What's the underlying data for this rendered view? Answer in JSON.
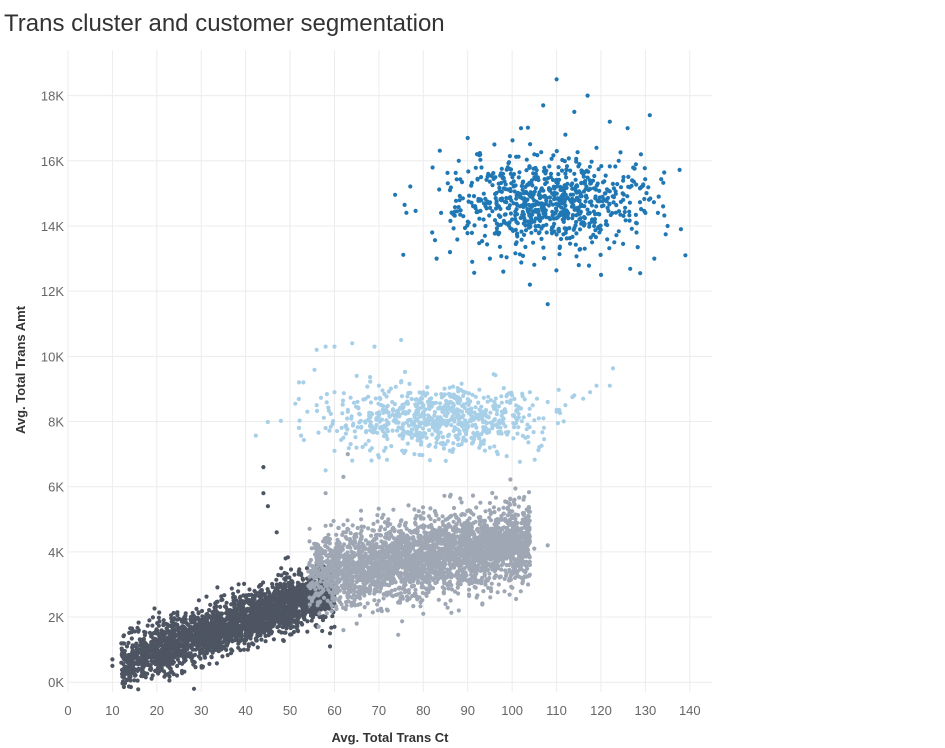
{
  "chart_data": {
    "type": "scatter",
    "title": "Trans cluster and customer segmentation",
    "xlabel": "Avg. Total Trans Ct",
    "ylabel": "Avg. Total Trans Amt",
    "xlim": [
      0,
      145
    ],
    "ylim": [
      -300,
      19400
    ],
    "x_ticks": [
      0,
      10,
      20,
      30,
      40,
      50,
      60,
      70,
      80,
      90,
      100,
      110,
      120,
      130,
      140
    ],
    "y_ticks": [
      {
        "value": 0,
        "label": "0K"
      },
      {
        "value": 2000,
        "label": "2K"
      },
      {
        "value": 4000,
        "label": "4K"
      },
      {
        "value": 6000,
        "label": "6K"
      },
      {
        "value": 8000,
        "label": "8K"
      },
      {
        "value": 10000,
        "label": "10K"
      },
      {
        "value": 12000,
        "label": "12K"
      },
      {
        "value": 14000,
        "label": "14K"
      },
      {
        "value": 16000,
        "label": "16K"
      },
      {
        "value": 18000,
        "label": "18K"
      }
    ],
    "grid": true,
    "legend": "none",
    "series": [
      {
        "color": "#4e5562",
        "points": [
          [
            10,
            500
          ],
          [
            10,
            700
          ],
          [
            12,
            600
          ],
          [
            14,
            650
          ],
          [
            15,
            900
          ],
          [
            16,
            700
          ],
          [
            18,
            1000
          ],
          [
            20,
            1100
          ],
          [
            20,
            800
          ],
          [
            22,
            1300
          ],
          [
            24,
            1200
          ],
          [
            25,
            1500
          ],
          [
            26,
            1100
          ],
          [
            28,
            1400
          ],
          [
            30,
            1600
          ],
          [
            30,
            1200
          ],
          [
            32,
            1800
          ],
          [
            33,
            1500
          ],
          [
            35,
            1900
          ],
          [
            36,
            1600
          ],
          [
            38,
            2200
          ],
          [
            38,
            1800
          ],
          [
            40,
            2000
          ],
          [
            40,
            1500
          ],
          [
            42,
            2400
          ],
          [
            43,
            2100
          ],
          [
            44,
            2700
          ],
          [
            45,
            1900
          ],
          [
            46,
            2500
          ],
          [
            47,
            3000
          ],
          [
            48,
            2200
          ],
          [
            50,
            2600
          ],
          [
            50,
            1800
          ],
          [
            51,
            3300
          ],
          [
            52,
            2400
          ],
          [
            53,
            2000
          ],
          [
            54,
            2800
          ],
          [
            55,
            2200
          ],
          [
            56,
            1700
          ],
          [
            57,
            2500
          ],
          [
            58,
            2000
          ],
          [
            59,
            1500
          ],
          [
            60,
            1700
          ],
          [
            59,
            1100
          ],
          [
            44,
            6600
          ],
          [
            44,
            5800
          ],
          [
            45,
            5400
          ],
          [
            47,
            4600
          ],
          [
            49,
            3800
          ],
          [
            48,
            3500
          ],
          [
            42,
            2800
          ],
          [
            36,
            1200
          ],
          [
            30,
            900
          ],
          [
            27,
            800
          ],
          [
            33,
            2300
          ]
        ],
        "cloud": {
          "count": 2600,
          "x_range": [
            12,
            60
          ],
          "y_at_x_start": 600,
          "y_slope": 48,
          "y_spread": 900
        }
      },
      {
        "color": "#9ea7b3",
        "points": [
          [
            55,
            3000
          ],
          [
            56,
            4200
          ],
          [
            57,
            3600
          ],
          [
            58,
            4800
          ],
          [
            60,
            3200
          ],
          [
            62,
            4600
          ],
          [
            63,
            2600
          ],
          [
            64,
            3900
          ],
          [
            66,
            5000
          ],
          [
            67,
            3300
          ],
          [
            69,
            4400
          ],
          [
            70,
            2500
          ],
          [
            71,
            3800
          ],
          [
            72,
            4900
          ],
          [
            74,
            3500
          ],
          [
            75,
            4200
          ],
          [
            76,
            2800
          ],
          [
            78,
            4600
          ],
          [
            79,
            3700
          ],
          [
            80,
            5200
          ],
          [
            82,
            4100
          ],
          [
            83,
            3300
          ],
          [
            85,
            4700
          ],
          [
            86,
            4000
          ],
          [
            88,
            5000
          ],
          [
            90,
            4400
          ],
          [
            92,
            3800
          ],
          [
            94,
            4800
          ],
          [
            96,
            4500
          ],
          [
            98,
            4200
          ],
          [
            100,
            4600
          ],
          [
            102,
            4300
          ],
          [
            105,
            4100
          ],
          [
            108,
            4200
          ],
          [
            103,
            3400
          ],
          [
            97,
            3000
          ],
          [
            92,
            2600
          ],
          [
            88,
            2200
          ],
          [
            85,
            2400
          ],
          [
            80,
            2100
          ],
          [
            72,
            2200
          ],
          [
            65,
            1800
          ],
          [
            62,
            1600
          ],
          [
            58,
            5800
          ],
          [
            62,
            6300
          ],
          [
            63,
            7000
          ],
          [
            78,
            5300
          ],
          [
            86,
            5700
          ],
          [
            104,
            3600
          ],
          [
            95,
            5500
          ]
        ],
        "cloud": {
          "count": 3000,
          "x_range": [
            54,
            104
          ],
          "y_at_x_start": 3300,
          "y_slope": 20,
          "y_spread": 1300
        }
      },
      {
        "color": "#a7cfe8",
        "points": [
          [
            52,
            9200
          ],
          [
            53,
            9200
          ],
          [
            56,
            10200
          ],
          [
            58,
            10300
          ],
          [
            60,
            10300
          ],
          [
            64,
            10400
          ],
          [
            69,
            10300
          ],
          [
            75,
            10500
          ],
          [
            56,
            8500
          ],
          [
            58,
            7800
          ],
          [
            60,
            8900
          ],
          [
            62,
            7500
          ],
          [
            63,
            8300
          ],
          [
            65,
            9400
          ],
          [
            67,
            7300
          ],
          [
            68,
            8000
          ],
          [
            70,
            9100
          ],
          [
            72,
            7700
          ],
          [
            73,
            8600
          ],
          [
            75,
            9200
          ],
          [
            76,
            7100
          ],
          [
            78,
            8200
          ],
          [
            80,
            8900
          ],
          [
            82,
            7600
          ],
          [
            84,
            8400
          ],
          [
            85,
            7300
          ],
          [
            87,
            8000
          ],
          [
            88,
            7600
          ],
          [
            89,
            8500
          ],
          [
            90,
            7900
          ],
          [
            92,
            8200
          ],
          [
            94,
            7800
          ],
          [
            96,
            8600
          ],
          [
            98,
            8100
          ],
          [
            100,
            8800
          ],
          [
            102,
            8400
          ],
          [
            104,
            8900
          ],
          [
            106,
            8100
          ],
          [
            108,
            8600
          ],
          [
            110,
            8300
          ],
          [
            112,
            8500
          ],
          [
            114,
            8800
          ],
          [
            116,
            8700
          ],
          [
            119,
            9100
          ],
          [
            122,
            9100
          ],
          [
            58,
            6500
          ],
          [
            64,
            6800
          ],
          [
            60,
            7100
          ],
          [
            70,
            6900
          ],
          [
            78,
            7000
          ],
          [
            95,
            7200
          ],
          [
            103,
            7500
          ]
        ],
        "cloud": {
          "count": 700,
          "x_range": [
            56,
            110
          ],
          "y_center": 8100,
          "y_spread": 900
        }
      },
      {
        "color": "#1f77b4",
        "points": [
          [
            82,
            13800
          ],
          [
            83,
            13000
          ],
          [
            84,
            14400
          ],
          [
            86,
            15100
          ],
          [
            86,
            13200
          ],
          [
            88,
            16000
          ],
          [
            89,
            14300
          ],
          [
            90,
            16700
          ],
          [
            91,
            12900
          ],
          [
            93,
            15500
          ],
          [
            94,
            14000
          ],
          [
            95,
            13000
          ],
          [
            96,
            16500
          ],
          [
            97,
            14600
          ],
          [
            98,
            12600
          ],
          [
            99,
            15800
          ],
          [
            100,
            14200
          ],
          [
            101,
            13500
          ],
          [
            102,
            17000
          ],
          [
            103,
            15200
          ],
          [
            104,
            12200
          ],
          [
            105,
            16200
          ],
          [
            106,
            14000
          ],
          [
            107,
            17700
          ],
          [
            108,
            11600
          ],
          [
            109,
            15000
          ],
          [
            110,
            18500
          ],
          [
            111,
            13600
          ],
          [
            112,
            16800
          ],
          [
            113,
            14800
          ],
          [
            114,
            17500
          ],
          [
            115,
            12800
          ],
          [
            116,
            15600
          ],
          [
            117,
            18000
          ],
          [
            118,
            14200
          ],
          [
            119,
            16400
          ],
          [
            120,
            12500
          ],
          [
            121,
            15000
          ],
          [
            122,
            17200
          ],
          [
            123,
            13500
          ],
          [
            124,
            16000
          ],
          [
            125,
            14800
          ],
          [
            126,
            17000
          ],
          [
            127,
            15400
          ],
          [
            128,
            13800
          ],
          [
            129,
            16200
          ],
          [
            130,
            14400
          ],
          [
            131,
            17400
          ],
          [
            132,
            13000
          ],
          [
            133,
            14900
          ],
          [
            134,
            14600
          ],
          [
            135,
            14000
          ],
          [
            138,
            13900
          ],
          [
            139,
            13100
          ]
        ],
        "cloud": {
          "count": 750,
          "x_range": [
            85,
            132
          ],
          "y_center": 14700,
          "y_spread": 1300
        }
      }
    ]
  }
}
